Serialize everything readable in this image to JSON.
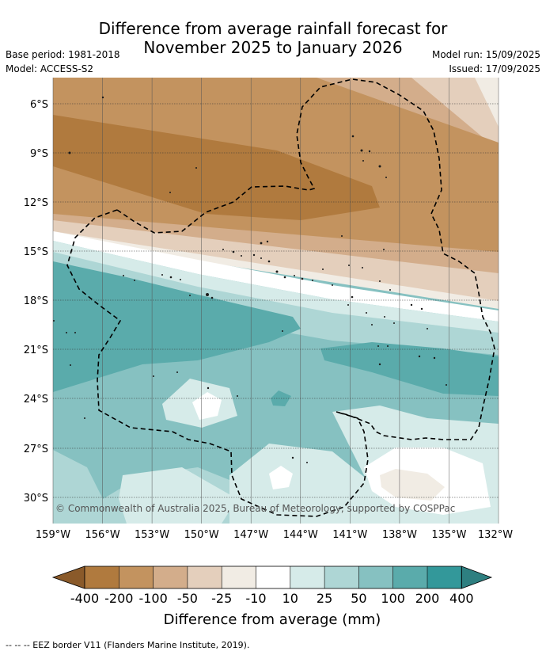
{
  "header": {
    "title_line1": "Difference from average rainfall forecast for",
    "title_line2": "November 2025 to January 2026",
    "base_period": "Base period: 1981-2018",
    "model": "Model: ACCESS-S2",
    "model_run": "Model run: 15/09/2025",
    "issued": "Issued: 17/09/2025"
  },
  "map": {
    "lat_labels": [
      "6°S",
      "9°S",
      "12°S",
      "15°S",
      "18°S",
      "21°S",
      "24°S",
      "27°S",
      "30°S"
    ],
    "lon_labels": [
      "159°W",
      "156°W",
      "153°W",
      "150°W",
      "147°W",
      "144°W",
      "141°W",
      "138°W",
      "135°W",
      "132°W"
    ],
    "copyright": "© Commonwealth of Australia 2025, Bureau of Meteorology, supported by COSPPac"
  },
  "legend": {
    "tick_labels": [
      "-400",
      "-200",
      "-100",
      "-50",
      "-25",
      "-10",
      "10",
      "25",
      "50",
      "100",
      "200",
      "400"
    ],
    "colors": [
      "#b07a3e",
      "#c3935f",
      "#d3ad8b",
      "#e4cfbc",
      "#f1ece4",
      "#ffffff",
      "#d6ebe9",
      "#aed6d5",
      "#86c1c1",
      "#5aabab",
      "#33989a",
      "#2e7f80",
      "#8a5a2a"
    ],
    "title": "Difference from average (mm)"
  },
  "footer": {
    "eez_note": "--  --  -- EEZ border V11 (Flanders Marine Institute, 2019)."
  }
}
